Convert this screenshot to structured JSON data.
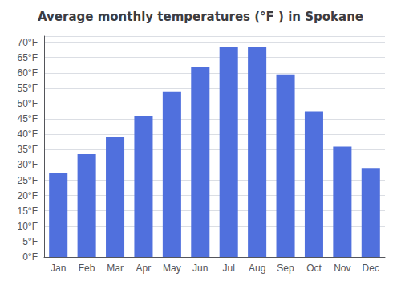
{
  "chart_data": {
    "type": "bar",
    "title": "Average monthly temperatures (°F ) in Spokane",
    "categories": [
      "Jan",
      "Feb",
      "Mar",
      "Apr",
      "May",
      "Jun",
      "Jul",
      "Aug",
      "Sep",
      "Oct",
      "Nov",
      "Dec"
    ],
    "values": [
      27.5,
      33.5,
      39.0,
      46.0,
      54.0,
      62.0,
      68.5,
      68.5,
      59.5,
      47.5,
      36.0,
      29.0
    ],
    "ylim": [
      0,
      72
    ],
    "yticks": [
      {
        "value": 0,
        "label": "0°F"
      },
      {
        "value": 5,
        "label": "5°F"
      },
      {
        "value": 10,
        "label": "10°F"
      },
      {
        "value": 15,
        "label": "15°F"
      },
      {
        "value": 20,
        "label": "20°F"
      },
      {
        "value": 25,
        "label": "25°F"
      },
      {
        "value": 30,
        "label": "30°F"
      },
      {
        "value": 35,
        "label": "35°F"
      },
      {
        "value": 40,
        "label": "40°F"
      },
      {
        "value": 45,
        "label": "45°F"
      },
      {
        "value": 50,
        "label": "50°F"
      },
      {
        "value": 55,
        "label": "55°F"
      },
      {
        "value": 60,
        "label": "60°F"
      },
      {
        "value": 65,
        "label": "65°F"
      },
      {
        "value": 70,
        "label": "70°F"
      }
    ],
    "grid": true
  }
}
